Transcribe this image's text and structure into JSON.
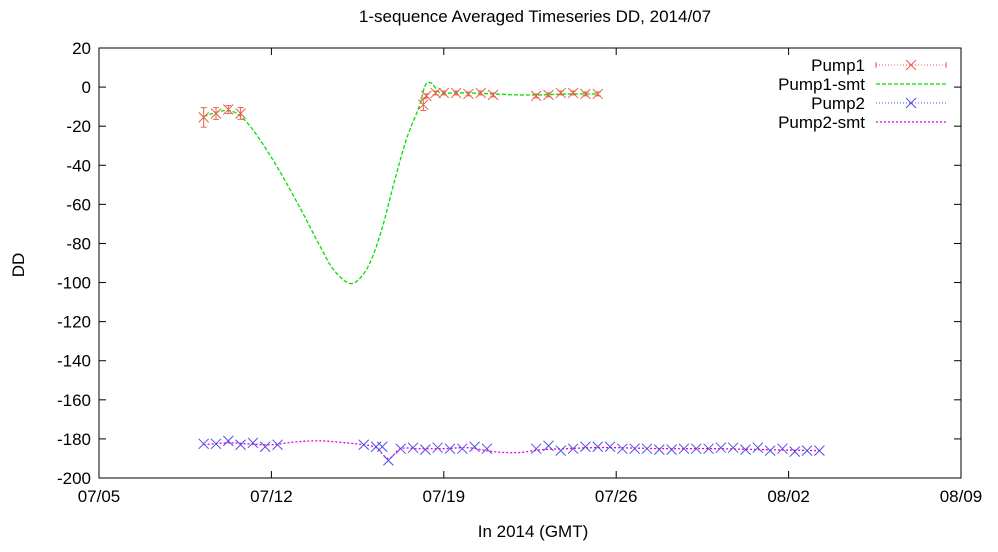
{
  "chart_data": {
    "type": "line",
    "title": "1-sequence Averaged Timeseries DD, 2014/07",
    "xlabel": "In 2014 (GMT)",
    "ylabel": "DD",
    "x_is_date": true,
    "xlim": [
      "2014-07-05",
      "2014-08-09"
    ],
    "ylim": [
      -200,
      20
    ],
    "xticks": [
      {
        "value": "2014-07-05",
        "label": "07/05"
      },
      {
        "value": "2014-07-12",
        "label": "07/12"
      },
      {
        "value": "2014-07-19",
        "label": "07/19"
      },
      {
        "value": "2014-07-26",
        "label": "07/26"
      },
      {
        "value": "2014-08-02",
        "label": "08/02"
      },
      {
        "value": "2014-08-09",
        "label": "08/09"
      }
    ],
    "yticks": [
      20,
      0,
      -20,
      -40,
      -60,
      -80,
      -100,
      -120,
      -140,
      -160,
      -180,
      -200
    ],
    "grid": false,
    "legend": "top-right",
    "series": [
      {
        "name": "Pump1",
        "style": "points-errorbars",
        "color": "#e8604a",
        "x": [
          "2014-07-09 06:00",
          "2014-07-09 18:00",
          "2014-07-10 06:00",
          "2014-07-10 18:00",
          "2014-07-18 04:00",
          "2014-07-18 07:00",
          "2014-07-18 16:00",
          "2014-07-19 00:00",
          "2014-07-19 12:00",
          "2014-07-20 00:00",
          "2014-07-20 12:00",
          "2014-07-21 00:00",
          "2014-07-22 18:00",
          "2014-07-23 06:00",
          "2014-07-23 18:00",
          "2014-07-24 06:00",
          "2014-07-24 18:00",
          "2014-07-25 06:00"
        ],
        "y": [
          -15.5,
          -13.5,
          -11.5,
          -13.5,
          -9,
          -4.5,
          -3,
          -3,
          -3,
          -3.5,
          -3,
          -4,
          -4.5,
          -4,
          -3,
          -3,
          -3.5,
          -3.5
        ],
        "err": [
          5,
          3,
          2,
          3,
          3,
          1,
          1,
          1,
          1,
          1,
          1,
          1,
          1,
          1,
          1,
          1,
          1,
          1
        ]
      },
      {
        "name": "Pump1-smt",
        "style": "line",
        "color": "#00e000",
        "x": [
          "2014-07-09 06:00",
          "2014-07-10 06:00",
          "2014-07-11 00:00",
          "2014-07-12 00:00",
          "2014-07-13 00:00",
          "2014-07-14 00:00",
          "2014-07-14 12:00",
          "2014-07-15 02:00",
          "2014-07-15 12:00",
          "2014-07-16 00:00",
          "2014-07-16 12:00",
          "2014-07-17 00:00",
          "2014-07-17 12:00",
          "2014-07-18 00:00",
          "2014-07-18 06:00",
          "2014-07-18 12:00",
          "2014-07-18 18:00",
          "2014-07-19 00:00",
          "2014-07-20 00:00",
          "2014-07-21 00:00",
          "2014-07-22 00:00",
          "2014-07-23 00:00",
          "2014-07-24 00:00",
          "2014-07-25 06:00"
        ],
        "y": [
          -15,
          -12,
          -18,
          -36,
          -58,
          -82,
          -93,
          -100,
          -99,
          -90,
          -72,
          -48,
          -26,
          -10,
          1,
          2,
          -2,
          -3,
          -3,
          -3.5,
          -4,
          -4,
          -3.5,
          -3.5
        ]
      },
      {
        "name": "Pump2",
        "style": "points",
        "color": "#5050e8",
        "x": [
          "2014-07-09 06:00",
          "2014-07-09 18:00",
          "2014-07-10 06:00",
          "2014-07-10 18:00",
          "2014-07-11 06:00",
          "2014-07-11 18:00",
          "2014-07-12 06:00",
          "2014-07-15 18:00",
          "2014-07-16 06:00",
          "2014-07-16 12:00",
          "2014-07-16 18:00",
          "2014-07-17 06:00",
          "2014-07-17 18:00",
          "2014-07-18 06:00",
          "2014-07-18 18:00",
          "2014-07-19 06:00",
          "2014-07-19 18:00",
          "2014-07-20 06:00",
          "2014-07-20 18:00",
          "2014-07-22 18:00",
          "2014-07-23 06:00",
          "2014-07-23 18:00",
          "2014-07-24 06:00",
          "2014-07-24 18:00",
          "2014-07-25 06:00",
          "2014-07-25 18:00",
          "2014-07-26 06:00",
          "2014-07-26 18:00",
          "2014-07-27 06:00",
          "2014-07-27 18:00",
          "2014-07-28 06:00",
          "2014-07-28 18:00",
          "2014-07-29 06:00",
          "2014-07-29 18:00",
          "2014-07-30 06:00",
          "2014-07-30 18:00",
          "2014-07-31 06:00",
          "2014-07-31 18:00",
          "2014-08-01 06:00",
          "2014-08-01 18:00",
          "2014-08-02 06:00",
          "2014-08-02 18:00",
          "2014-08-03 06:00"
        ],
        "y": [
          -182.5,
          -182.5,
          -181,
          -183,
          -182,
          -184,
          -183,
          -183,
          -184,
          -184,
          -191,
          -185,
          -184.5,
          -185.5,
          -184.5,
          -185,
          -185,
          -184,
          -185,
          -185,
          -183.5,
          -186,
          -185,
          -184,
          -184,
          -184,
          -185,
          -185,
          -185,
          -185.5,
          -185.5,
          -185,
          -185,
          -185,
          -184.5,
          -184.5,
          -185.5,
          -184.5,
          -186,
          -185,
          -186.5,
          -186,
          -186
        ]
      },
      {
        "name": "Pump2-smt",
        "style": "line",
        "color": "#e000e0",
        "x": [
          "2014-07-09 06:00",
          "2014-07-10 06:00",
          "2014-07-11 00:00",
          "2014-07-12 00:00",
          "2014-07-13 00:00",
          "2014-07-14 00:00",
          "2014-07-15 00:00",
          "2014-07-15 18:00",
          "2014-07-16 06:00",
          "2014-07-16 18:00",
          "2014-07-17 06:00",
          "2014-07-18 00:00",
          "2014-07-19 00:00",
          "2014-07-20 00:00",
          "2014-07-21 00:00",
          "2014-07-22 00:00",
          "2014-07-23 00:00",
          "2014-07-24 00:00",
          "2014-07-25 00:00",
          "2014-07-26 00:00",
          "2014-07-28 00:00",
          "2014-07-30 00:00",
          "2014-08-01 00:00",
          "2014-08-03 06:00"
        ],
        "y": [
          -183,
          -182,
          -182.5,
          -183,
          -181.5,
          -181,
          -182,
          -183,
          -184.5,
          -190,
          -185,
          -185,
          -185,
          -184.5,
          -186.5,
          -187,
          -185.5,
          -185,
          -184.5,
          -184.5,
          -185,
          -185,
          -185.5,
          -186
        ]
      }
    ]
  }
}
